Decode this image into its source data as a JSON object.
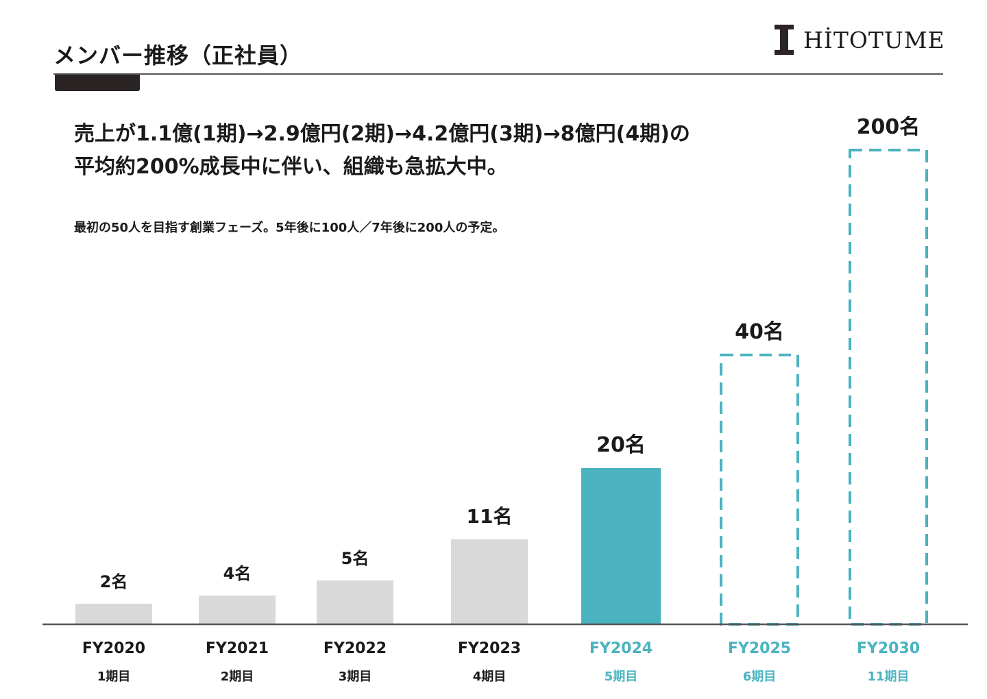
{
  "header": {
    "title": "メンバー推移（正社員）",
    "logo_text": "HİTOTUME"
  },
  "headline": {
    "line1": "売上が1.1億(1期)→2.9億円(2期)→4.2億円(3期)→8億円(4期)の",
    "line2": "平均約200%成長中に伴い、組織も急拡大中。"
  },
  "subline": "最初の50人を目指す創業フェーズ。5年後に100人／7年後に200人の予定。",
  "colors": {
    "actual": "#d9d9d9",
    "current": "#4bb3c0",
    "forecast_border": "#4bb3c0",
    "axis": "#555555",
    "text": "#1a1a1a"
  },
  "chart_data": {
    "type": "bar",
    "categories": [
      "FY2020",
      "FY2021",
      "FY2022",
      "FY2023",
      "FY2024",
      "FY2025",
      "FY2030"
    ],
    "periods": [
      "1期目",
      "2期目",
      "3期目",
      "4期目",
      "5期目",
      "6期目",
      "11期目"
    ],
    "values": [
      2,
      4,
      5,
      11,
      20,
      40,
      200
    ],
    "value_labels": [
      "2名",
      "4名",
      "5名",
      "11名",
      "20名",
      "40名",
      "200名"
    ],
    "styles": [
      "actual",
      "actual",
      "actual",
      "actual",
      "current",
      "forecast",
      "forecast"
    ],
    "unit": "名",
    "title": "",
    "xlabel": "",
    "ylabel": "",
    "grid": false,
    "legend": "none"
  }
}
